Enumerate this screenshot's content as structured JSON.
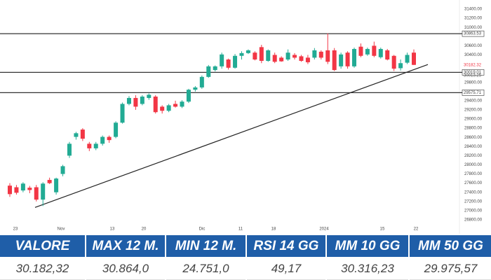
{
  "chart_data": {
    "type": "candlestick",
    "up_color": "#22ab94",
    "down_color": "#f23645",
    "open": [
      27545,
      27510,
      27440,
      27500,
      27510,
      27240,
      27670,
      27400,
      27800,
      28200,
      28610,
      28770,
      28460,
      28360,
      28460,
      28610,
      28610,
      28920,
      29330,
      29460,
      29330,
      29460,
      29490,
      29270,
      29180,
      29330,
      29270,
      29380,
      29640,
      29690,
      29920,
      30070,
      30150,
      30300,
      30120,
      30380,
      30440,
      30450,
      30570,
      30270,
      30400,
      30340,
      30300,
      30400,
      30370,
      30340,
      30340,
      30470,
      30500,
      30500,
      30150,
      30450,
      30150,
      30580,
      30410,
      30600,
      30350,
      30500,
      30380,
      30110,
      30230,
      30450
    ],
    "high": [
      27600,
      27560,
      27620,
      27540,
      27560,
      27620,
      27720,
      27720,
      28000,
      28500,
      28720,
      28800,
      28500,
      28500,
      28640,
      28640,
      28950,
      29360,
      29500,
      29520,
      29520,
      29560,
      29520,
      29300,
      29330,
      29400,
      29410,
      29660,
      29720,
      29950,
      30180,
      30170,
      30450,
      30320,
      30420,
      30480,
      30520,
      30480,
      30620,
      30520,
      30450,
      30370,
      30520,
      30440,
      30400,
      30400,
      30550,
      30500,
      30870,
      30550,
      30450,
      30480,
      30560,
      30650,
      30560,
      30690,
      30560,
      30530,
      30400,
      30300,
      30450,
      30520
    ],
    "low": [
      27300,
      27350,
      27400,
      27380,
      27200,
      27100,
      27580,
      27350,
      27750,
      28150,
      28550,
      28520,
      28300,
      28320,
      28420,
      28480,
      28580,
      28900,
      29300,
      29200,
      29300,
      29420,
      29120,
      29120,
      29150,
      29250,
      29240,
      29350,
      29600,
      29660,
      29900,
      30040,
      30100,
      30080,
      30100,
      30300,
      30420,
      30280,
      30220,
      30250,
      30220,
      30250,
      30270,
      30300,
      30250,
      30200,
      30300,
      30300,
      30200,
      30050,
      30100,
      30100,
      30120,
      30350,
      30380,
      30350,
      30320,
      30280,
      30050,
      30060,
      30200,
      30180
    ],
    "close": [
      27360,
      27390,
      27590,
      27450,
      27240,
      27590,
      27600,
      27700,
      27970,
      28460,
      28690,
      28570,
      28360,
      28460,
      28610,
      28540,
      28920,
      29330,
      29460,
      29270,
      29490,
      29530,
      29150,
      29180,
      29300,
      29270,
      29380,
      29640,
      29690,
      29920,
      30150,
      30150,
      30410,
      30120,
      30380,
      30440,
      30500,
      30300,
      30270,
      30500,
      30250,
      30260,
      30450,
      30340,
      30270,
      30240,
      30500,
      30340,
      30250,
      30070,
      30410,
      30150,
      30530,
      30380,
      30530,
      30380,
      30530,
      30300,
      30100,
      30220,
      30400,
      30182.32
    ],
    "x_labels": [
      "23",
      "Nov",
      "13",
      "20",
      "Dic",
      "11",
      "18",
      "2024",
      "15",
      "22"
    ],
    "ylim": [
      26700,
      31500
    ],
    "yticks": [
      {
        "value": 31400,
        "label": "31400.00"
      },
      {
        "value": 31200,
        "label": "31200.00"
      },
      {
        "value": 31000,
        "label": "31000.00"
      },
      {
        "value": 30600,
        "label": "30600.00"
      },
      {
        "value": 30400,
        "label": "30400.00"
      },
      {
        "value": 29800,
        "label": "29800.00"
      },
      {
        "value": 29400,
        "label": "29400.00"
      },
      {
        "value": 29200,
        "label": "29200.00"
      },
      {
        "value": 29000,
        "label": "29000.00"
      },
      {
        "value": 28800,
        "label": "28800.00"
      },
      {
        "value": 28600,
        "label": "28600.00"
      },
      {
        "value": 28400,
        "label": "28400.00"
      },
      {
        "value": 28200,
        "label": "28200.00"
      },
      {
        "value": 28000,
        "label": "28000.00"
      },
      {
        "value": 27800,
        "label": "27800.00"
      },
      {
        "value": 27600,
        "label": "27600.00"
      },
      {
        "value": 27400,
        "label": "27400.00"
      },
      {
        "value": 27200,
        "label": "27200.00"
      },
      {
        "value": 27000,
        "label": "27000.00"
      },
      {
        "value": 26800,
        "label": "26800.00"
      }
    ],
    "levels": [
      {
        "value": 30863.53,
        "label": "30863.53"
      },
      {
        "value": 30019.01,
        "label": "30019.01"
      },
      {
        "value": 29575.71,
        "label": "29575.71"
      }
    ],
    "price_markers": [
      {
        "value": 30182.32,
        "label": "30182.32",
        "color": "#f23645"
      },
      {
        "value": 30013.25,
        "label": "30013.25",
        "color": "#555555"
      }
    ],
    "trendline": {
      "start": 27070,
      "end": 30190
    }
  },
  "table": {
    "headers": [
      "VALORE",
      "MAX 12 M.",
      "MIN 12 M.",
      "RSI 14 GG",
      "MM 10 GG",
      "MM 50 GG"
    ],
    "values": [
      "30.182,32",
      "30.864,0",
      "24.751,0",
      "49,17",
      "30.316,23",
      "29.975,57"
    ]
  }
}
